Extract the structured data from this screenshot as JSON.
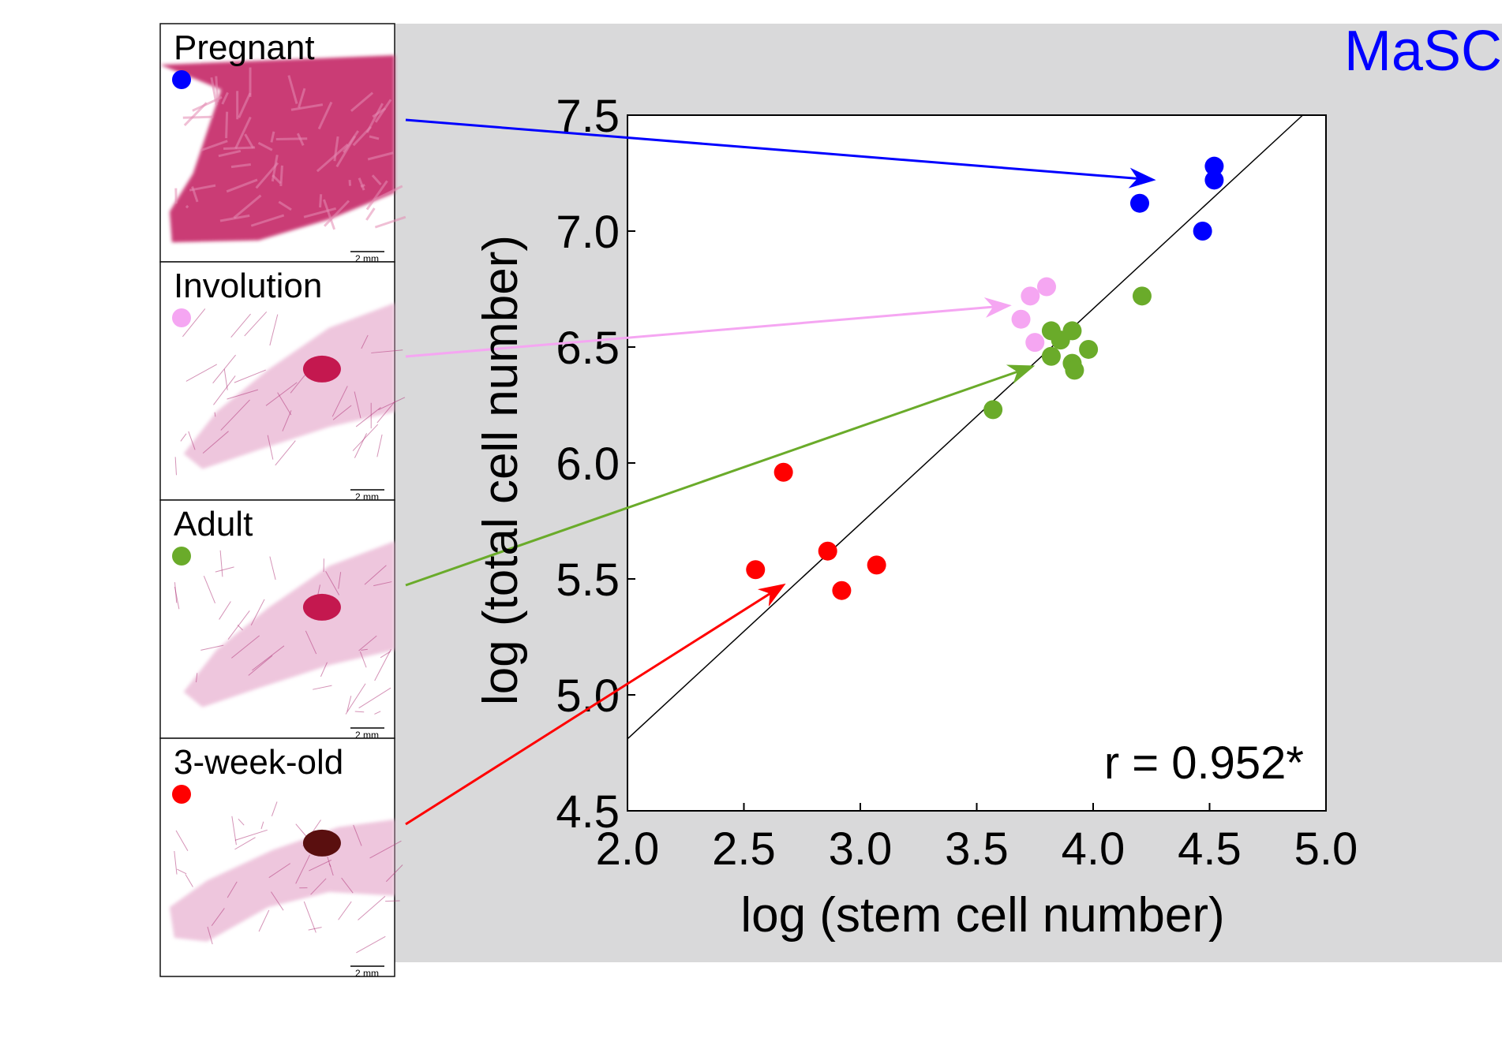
{
  "corner_label": "MaSC",
  "corner_label_color": "#0000ff",
  "correlation_text": "r = 0.952*",
  "stages": [
    {
      "label": "Pregnant",
      "color": "#0000ff",
      "scale_bar": "2 mm",
      "tissue": "dense"
    },
    {
      "label": "Involution",
      "color": "#f5a6f2",
      "scale_bar": "2 mm",
      "tissue": "sparse"
    },
    {
      "label": "Adult",
      "color": "#6aab2a",
      "scale_bar": "2 mm",
      "tissue": "sparse"
    },
    {
      "label": "3-week-old",
      "color": "#ff0000",
      "scale_bar": "2 mm",
      "tissue": "small"
    }
  ],
  "chart_data": {
    "type": "scatter",
    "xlabel": "log (stem cell number)",
    "ylabel": "log (total cell number)",
    "xlim": [
      2.0,
      5.0
    ],
    "ylim": [
      4.5,
      7.5
    ],
    "x_ticks": [
      "2.0",
      "2.5",
      "3.0",
      "3.5",
      "4.0",
      "4.5",
      "5.0"
    ],
    "y_ticks": [
      "4.5",
      "5.0",
      "5.5",
      "6.0",
      "6.5",
      "7.0",
      "7.5"
    ],
    "grid": false,
    "fit_line": {
      "x": [
        2.0,
        4.9
      ],
      "y": [
        4.81,
        7.5
      ]
    },
    "arrows": [
      {
        "stage": "Pregnant",
        "to": [
          4.27,
          7.22
        ]
      },
      {
        "stage": "Involution",
        "to": [
          3.65,
          6.68
        ]
      },
      {
        "stage": "Adult",
        "to": [
          3.75,
          6.42
        ]
      },
      {
        "stage": "3-week-old",
        "to": [
          2.68,
          5.48
        ]
      }
    ],
    "series": [
      {
        "stage": "Pregnant",
        "color": "#0000ff",
        "points": [
          [
            4.2,
            7.12
          ],
          [
            4.52,
            7.28
          ],
          [
            4.52,
            7.22
          ],
          [
            4.47,
            7.0
          ]
        ]
      },
      {
        "stage": "Involution",
        "color": "#f5a6f2",
        "points": [
          [
            3.73,
            6.72
          ],
          [
            3.8,
            6.76
          ],
          [
            3.69,
            6.62
          ],
          [
            3.75,
            6.52
          ]
        ]
      },
      {
        "stage": "Adult",
        "color": "#6aab2a",
        "points": [
          [
            3.57,
            6.23
          ],
          [
            3.82,
            6.57
          ],
          [
            3.86,
            6.53
          ],
          [
            3.82,
            6.46
          ],
          [
            3.91,
            6.57
          ],
          [
            3.91,
            6.43
          ],
          [
            3.92,
            6.4
          ],
          [
            3.98,
            6.49
          ],
          [
            4.21,
            6.72
          ]
        ]
      },
      {
        "stage": "3-week-old",
        "color": "#ff0000",
        "points": [
          [
            2.67,
            5.96
          ],
          [
            2.55,
            5.54
          ],
          [
            2.86,
            5.62
          ],
          [
            2.92,
            5.45
          ],
          [
            3.07,
            5.56
          ]
        ]
      }
    ]
  }
}
